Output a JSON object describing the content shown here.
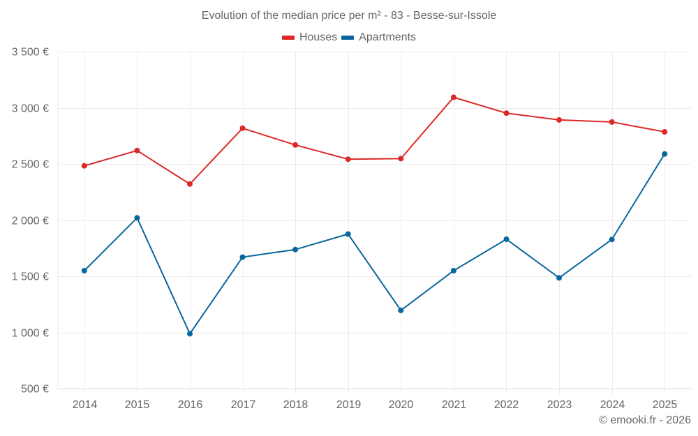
{
  "chart_data": {
    "type": "line",
    "title": "Evolution of the median price per m² - 83 - Besse-sur-Issole",
    "xlabel": "",
    "ylabel": "",
    "categories": [
      "2014",
      "2015",
      "2016",
      "2017",
      "2018",
      "2019",
      "2020",
      "2021",
      "2022",
      "2023",
      "2024",
      "2025"
    ],
    "series": [
      {
        "name": "Houses",
        "color": "#dd2828",
        "values": [
          2483,
          2619,
          2321,
          2818,
          2669,
          2542,
          2547,
          3093,
          2952,
          2892,
          2873,
          2786
        ]
      },
      {
        "name": "Apartments",
        "color": "#08679c",
        "values": [
          1550,
          2020,
          988,
          1670,
          1738,
          1876,
          1196,
          1550,
          1830,
          1486,
          1828,
          2589
        ]
      }
    ],
    "ylim": [
      500,
      3500
    ],
    "yticks": [
      500,
      1000,
      1500,
      2000,
      2500,
      3000,
      3500
    ],
    "ytick_labels": [
      "500 €",
      "1 000 €",
      "1 500 €",
      "2 000 €",
      "2 500 €",
      "3 000 €",
      "3 500 €"
    ],
    "grid": true,
    "legend_position": "top-center"
  },
  "credit": "© emooki.fr - 2026"
}
